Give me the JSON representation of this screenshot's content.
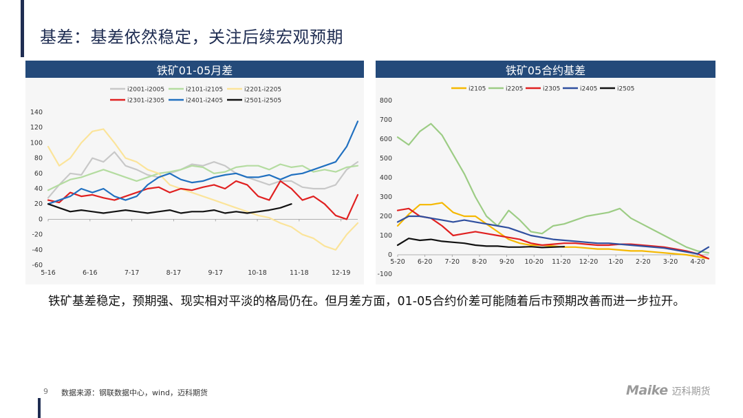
{
  "page": {
    "title": "基差：基差依然稳定，关注后续宏观预期",
    "body_text": "铁矿基差稳定，预期强、现实相对平淡的格局仍在。但月差方面，01-05合约价差可能随着后市预期改善而进一步拉开。",
    "page_number": "9",
    "source": "数据来源：钢联数据中心，wind，迈科期货",
    "logo_mark": "Maike",
    "logo_cn": "迈科期货"
  },
  "chart_data": [
    {
      "type": "line",
      "title": "铁矿01-05月差",
      "x_tick_labels": [
        "5-16",
        "6-16",
        "7-17",
        "8-17",
        "9-17",
        "10-18",
        "11-18",
        "12-19"
      ],
      "ylim": [
        -60,
        140
      ],
      "y_ticks": [
        -60,
        -40,
        -20,
        0,
        20,
        40,
        60,
        80,
        100,
        120,
        140
      ],
      "grid": false,
      "legend": "top",
      "series": [
        {
          "name": "i2001-i2005",
          "color": "#c8c8c8",
          "values": [
            28,
            45,
            60,
            58,
            80,
            75,
            88,
            70,
            65,
            58,
            55,
            60,
            65,
            72,
            70,
            75,
            70,
            60,
            55,
            50,
            45,
            50,
            50,
            42,
            40,
            40,
            45,
            65,
            75
          ]
        },
        {
          "name": "i2101-i2105",
          "color": "#b4dca0",
          "values": [
            38,
            45,
            52,
            55,
            60,
            65,
            60,
            55,
            50,
            55,
            60,
            62,
            65,
            70,
            68,
            60,
            62,
            68,
            70,
            70,
            65,
            72,
            68,
            70,
            62,
            65,
            62,
            68,
            70
          ]
        },
        {
          "name": "i2201-i2205",
          "color": "#fbe49a",
          "values": [
            95,
            70,
            80,
            100,
            115,
            118,
            100,
            80,
            75,
            65,
            60,
            45,
            40,
            35,
            30,
            25,
            20,
            15,
            10,
            5,
            2,
            -5,
            -10,
            -20,
            -25,
            -35,
            -40,
            -20,
            -5
          ]
        },
        {
          "name": "i2301-i2305",
          "color": "#e02020",
          "values": [
            25,
            22,
            35,
            30,
            32,
            28,
            25,
            30,
            35,
            40,
            42,
            35,
            40,
            38,
            42,
            45,
            40,
            50,
            45,
            30,
            25,
            50,
            40,
            25,
            30,
            20,
            5,
            0,
            32
          ]
        },
        {
          "name": "i2401-i2405",
          "color": "#2070c0",
          "values": [
            20,
            25,
            30,
            40,
            35,
            40,
            30,
            25,
            30,
            45,
            55,
            60,
            52,
            48,
            50,
            55,
            58,
            60,
            55,
            55,
            58,
            52,
            58,
            60,
            65,
            70,
            75,
            95,
            128
          ]
        },
        {
          "name": "i2501-i2505",
          "color": "#111111",
          "values": [
            20,
            15,
            10,
            12,
            10,
            8,
            10,
            12,
            10,
            8,
            10,
            12,
            8,
            10,
            10,
            12,
            8,
            10,
            8,
            10,
            12,
            15,
            20
          ]
        }
      ]
    },
    {
      "type": "line",
      "title": "铁矿05合约基差",
      "x_tick_labels": [
        "5-20",
        "6-20",
        "7-20",
        "8-20",
        "9-20",
        "10-20",
        "11-20",
        "12-20",
        "1-20",
        "2-20",
        "3-20",
        "4-20"
      ],
      "ylim": [
        -100,
        800
      ],
      "y_ticks": [
        -100,
        0,
        100,
        200,
        300,
        400,
        500,
        600,
        700,
        800
      ],
      "grid": false,
      "legend": "top",
      "series": [
        {
          "name": "i2105",
          "color": "#f5b800",
          "values": [
            150,
            210,
            260,
            260,
            270,
            220,
            200,
            200,
            160,
            120,
            80,
            60,
            50,
            50,
            45,
            40,
            40,
            35,
            30,
            30,
            25,
            20,
            20,
            15,
            10,
            5,
            0,
            -10,
            -20
          ]
        },
        {
          "name": "i2205",
          "color": "#9ccc84",
          "values": [
            610,
            570,
            640,
            680,
            620,
            520,
            420,
            300,
            200,
            150,
            230,
            180,
            120,
            110,
            150,
            160,
            180,
            200,
            210,
            220,
            240,
            190,
            160,
            130,
            100,
            70,
            40,
            20,
            10
          ]
        },
        {
          "name": "i2305",
          "color": "#e02020",
          "values": [
            230,
            240,
            200,
            190,
            150,
            100,
            110,
            120,
            110,
            100,
            90,
            80,
            60,
            50,
            55,
            60,
            60,
            55,
            50,
            50,
            55,
            55,
            50,
            45,
            40,
            30,
            20,
            5,
            -20
          ]
        },
        {
          "name": "i2405",
          "color": "#2f4f9f",
          "values": [
            170,
            200,
            200,
            190,
            180,
            170,
            180,
            170,
            160,
            150,
            140,
            120,
            100,
            90,
            80,
            75,
            70,
            65,
            60,
            60,
            55,
            50,
            45,
            40,
            35,
            25,
            15,
            5,
            40
          ]
        },
        {
          "name": "i2505",
          "color": "#111111",
          "values": [
            50,
            85,
            75,
            80,
            70,
            65,
            60,
            50,
            45,
            45,
            40,
            40,
            42,
            38,
            40,
            42
          ]
        }
      ]
    }
  ]
}
